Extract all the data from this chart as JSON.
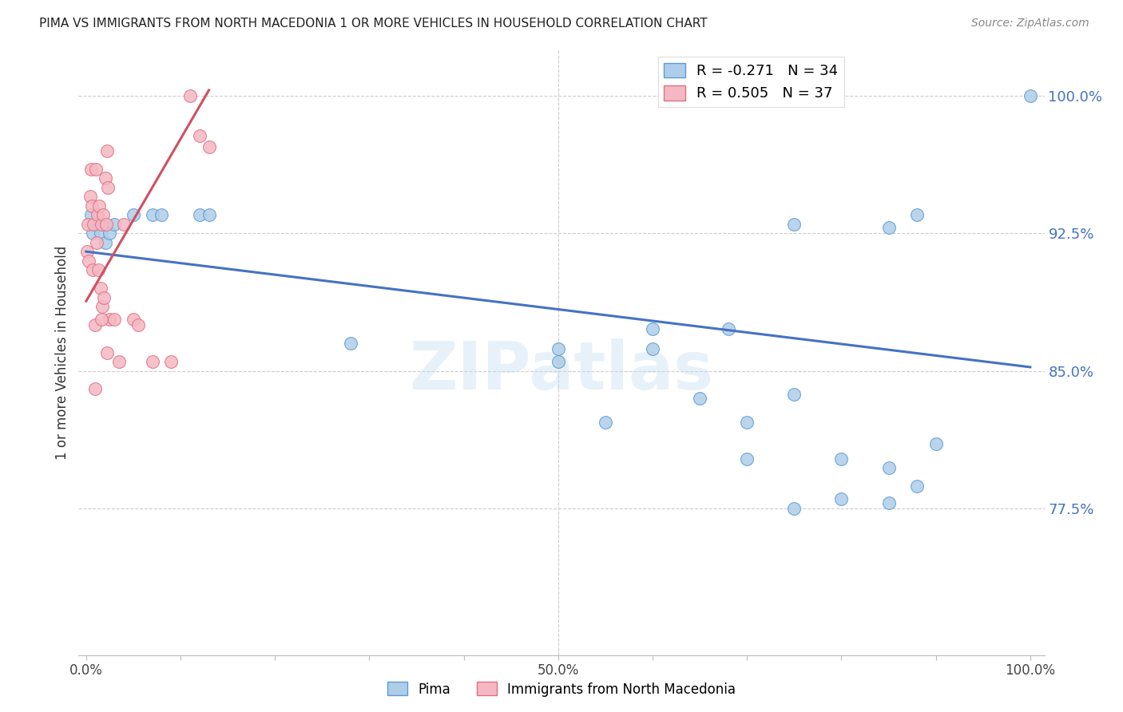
{
  "title": "PIMA VS IMMIGRANTS FROM NORTH MACEDONIA 1 OR MORE VEHICLES IN HOUSEHOLD CORRELATION CHART",
  "source": "Source: ZipAtlas.com",
  "ylabel": "1 or more Vehicles in Household",
  "ylim": [
    0.695,
    1.025
  ],
  "xlim": [
    -0.008,
    1.015
  ],
  "yticks": [
    0.775,
    0.85,
    0.925,
    1.0
  ],
  "ytick_labels": [
    "77.5%",
    "85.0%",
    "92.5%",
    "100.0%"
  ],
  "blue_R": -0.271,
  "blue_N": 34,
  "pink_R": 0.505,
  "pink_N": 37,
  "blue_label": "Pima",
  "pink_label": "Immigrants from North Macedonia",
  "blue_color": "#aecde8",
  "blue_edge_color": "#5b9bd5",
  "blue_line_color": "#4472c4",
  "pink_color": "#f4b8c4",
  "pink_edge_color": "#e07080",
  "pink_line_color": "#d05060",
  "watermark": "ZIPatlas",
  "blue_line_x0": 0.0,
  "blue_line_y0": 0.915,
  "blue_line_x1": 1.0,
  "blue_line_y1": 0.852,
  "pink_line_x0": 0.0,
  "pink_line_y0": 0.888,
  "pink_line_x1": 0.13,
  "pink_line_y1": 1.003,
  "blue_x": [
    0.005,
    0.007,
    0.012,
    0.015,
    0.02,
    0.025,
    0.03,
    0.05,
    0.07,
    0.08,
    0.12,
    0.13,
    0.28,
    0.5,
    0.5,
    0.55,
    0.6,
    0.65,
    0.7,
    0.7,
    0.75,
    0.75,
    0.8,
    0.8,
    0.85,
    0.85,
    0.88,
    0.9,
    1.0,
    0.68,
    0.6,
    0.88,
    0.75,
    0.85
  ],
  "blue_y": [
    0.935,
    0.925,
    0.93,
    0.925,
    0.92,
    0.925,
    0.93,
    0.935,
    0.935,
    0.935,
    0.935,
    0.935,
    0.865,
    0.862,
    0.855,
    0.822,
    0.873,
    0.835,
    0.822,
    0.802,
    0.93,
    0.837,
    0.802,
    0.78,
    0.778,
    0.797,
    0.787,
    0.81,
    1.0,
    0.873,
    0.862,
    0.935,
    0.775,
    0.928
  ],
  "pink_x": [
    0.001,
    0.002,
    0.003,
    0.004,
    0.005,
    0.006,
    0.007,
    0.008,
    0.009,
    0.01,
    0.011,
    0.012,
    0.013,
    0.014,
    0.015,
    0.016,
    0.017,
    0.018,
    0.019,
    0.02,
    0.021,
    0.022,
    0.023,
    0.025,
    0.03,
    0.035,
    0.04,
    0.05,
    0.055,
    0.07,
    0.09,
    0.11,
    0.12,
    0.13,
    0.016,
    0.022,
    0.009
  ],
  "pink_y": [
    0.915,
    0.93,
    0.91,
    0.945,
    0.96,
    0.94,
    0.905,
    0.93,
    0.875,
    0.96,
    0.92,
    0.935,
    0.905,
    0.94,
    0.895,
    0.93,
    0.885,
    0.935,
    0.89,
    0.955,
    0.93,
    0.97,
    0.95,
    0.878,
    0.878,
    0.855,
    0.93,
    0.878,
    0.875,
    0.855,
    0.855,
    1.0,
    0.978,
    0.972,
    0.878,
    0.86,
    0.84
  ]
}
